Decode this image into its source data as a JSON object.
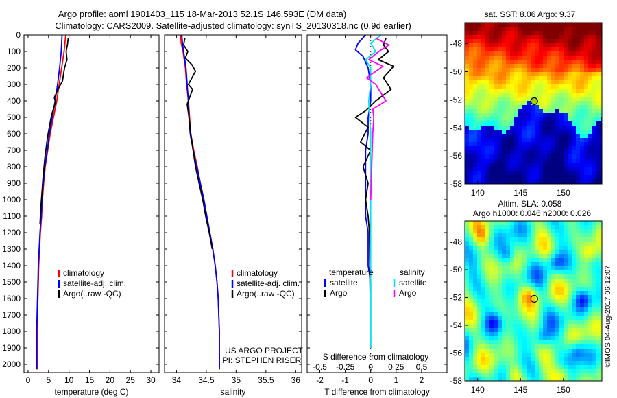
{
  "header": {
    "title_line1": "Argo profile: aoml 1901403_115 18-Mar-2013 52.1S 146.593E (DM data)",
    "title_line2": "Climatology: CARS2009. Satellite-adjusted climatology: synTS_20130318.nc (0.9d earlier)"
  },
  "footer": {
    "project_line1": "US ARGO PROJECT",
    "project_line2": "PI: STEPHEN RISER",
    "copyright": "©IMOS 04-Aug-2017 06:12:07"
  },
  "colors": {
    "climatology": "#ff0000",
    "satellite": "#0000ff",
    "argo": "#000000",
    "salinity_satellite": "#00e5ee",
    "salinity_argo": "#ff00ff"
  },
  "chart_data": [
    {
      "id": "temperature",
      "type": "line",
      "xlabel": "temperature (deg C)",
      "ylabel": "",
      "xlim": [
        -1,
        32
      ],
      "ylim": [
        2050,
        0
      ],
      "xticks": [
        0,
        5,
        10,
        15,
        20,
        25,
        30
      ],
      "xtick_labels": [
        "0",
        "5",
        "10",
        "15",
        "20",
        "25",
        "30"
      ],
      "yticks": [
        0,
        100,
        200,
        300,
        400,
        500,
        600,
        700,
        800,
        900,
        1000,
        1100,
        1200,
        1300,
        1400,
        1500,
        1600,
        1700,
        1800,
        1900,
        2000
      ],
      "ytick_labels": [
        "0",
        "100",
        "200",
        "300",
        "400",
        "500",
        "600",
        "700",
        "800",
        "900",
        "1000",
        "1100",
        "1200",
        "1300",
        "1400",
        "1500",
        "1600",
        "1700",
        "1800",
        "1900",
        "2000"
      ],
      "legend": {
        "placement": "bottom-right",
        "entries": [
          "climatology",
          "satellite-adj. clim.",
          "Argo(..raw -QC)"
        ]
      },
      "series": [
        {
          "name": "climatology",
          "color": "#ff0000",
          "x": [
            9.2,
            9.0,
            8.8,
            8.5,
            8.2,
            7.6,
            7.0,
            6.2,
            5.4,
            4.8,
            4.2,
            3.8,
            3.5,
            3.3,
            3.0,
            2.8,
            2.6,
            2.5,
            2.4,
            2.3,
            2.2,
            2.2
          ],
          "y": [
            0,
            50,
            100,
            150,
            200,
            300,
            400,
            500,
            600,
            700,
            800,
            900,
            1000,
            1100,
            1200,
            1300,
            1400,
            1500,
            1600,
            1700,
            1800,
            2030
          ]
        },
        {
          "name": "satellite-adj. clim.",
          "color": "#0000ff",
          "x": [
            8.3,
            8.2,
            8.1,
            7.9,
            7.7,
            7.2,
            6.6,
            5.9,
            5.2,
            4.7,
            4.1,
            3.7,
            3.4,
            3.2,
            2.9,
            2.7,
            2.5,
            2.4,
            2.3,
            2.2,
            2.1,
            2.1
          ],
          "y": [
            0,
            50,
            100,
            150,
            200,
            300,
            400,
            500,
            600,
            700,
            800,
            900,
            1000,
            1100,
            1200,
            1300,
            1400,
            1500,
            1600,
            1700,
            1800,
            2030
          ]
        },
        {
          "name": "Argo(..raw -QC)",
          "color": "#000000",
          "x": [
            9.8,
            9.6,
            9.3,
            9.5,
            8.9,
            8.4,
            7.3,
            6.4,
            6.7,
            5.8,
            5.4,
            4.9,
            4.6,
            4.1,
            3.7,
            3.4,
            3.1,
            2.9
          ],
          "y": [
            20,
            60,
            100,
            150,
            200,
            280,
            330,
            380,
            410,
            480,
            530,
            600,
            650,
            750,
            850,
            950,
            1050,
            1150
          ]
        }
      ]
    },
    {
      "id": "salinity",
      "type": "line",
      "xlabel": "salinity",
      "ylabel": "",
      "xlim": [
        33.8,
        36.1
      ],
      "ylim": [
        2050,
        0
      ],
      "xticks": [
        34,
        34.5,
        35,
        35.5,
        36
      ],
      "xtick_labels": [
        "34",
        "34.5",
        "35",
        "35.5",
        "36"
      ],
      "legend": {
        "placement": "bottom-right",
        "entries": [
          "climatology",
          "satellite-adj. clim.",
          "Argo(..raw -QC)"
        ]
      },
      "series": [
        {
          "name": "climatology",
          "color": "#ff0000",
          "x": [
            34.07,
            34.08,
            34.11,
            34.13,
            34.15,
            34.17,
            34.2,
            34.22,
            34.24,
            34.29,
            34.35,
            34.4,
            34.46,
            34.51,
            34.56,
            34.61,
            34.65,
            34.68,
            34.7,
            34.71,
            34.72,
            34.72
          ],
          "y": [
            0,
            50,
            100,
            150,
            200,
            300,
            400,
            500,
            600,
            700,
            800,
            900,
            1000,
            1100,
            1200,
            1300,
            1400,
            1500,
            1600,
            1700,
            1800,
            2030
          ]
        },
        {
          "name": "satellite-adj. clim.",
          "color": "#0000ff",
          "x": [
            34.09,
            34.1,
            34.12,
            34.14,
            34.16,
            34.18,
            34.2,
            34.21,
            34.23,
            34.28,
            34.34,
            34.4,
            34.46,
            34.51,
            34.56,
            34.61,
            34.65,
            34.68,
            34.7,
            34.71,
            34.72,
            34.72
          ],
          "y": [
            0,
            50,
            100,
            150,
            200,
            300,
            400,
            500,
            600,
            700,
            800,
            900,
            1000,
            1100,
            1200,
            1300,
            1400,
            1500,
            1600,
            1700,
            1800,
            2030
          ]
        },
        {
          "name": "Argo(..raw -QC)",
          "color": "#000000",
          "x": [
            34.14,
            34.12,
            34.19,
            34.15,
            34.26,
            34.32,
            34.2,
            34.27,
            34.18,
            34.21,
            34.24,
            34.28,
            34.32,
            34.38,
            34.44,
            34.49,
            34.55,
            34.6
          ],
          "y": [
            20,
            60,
            100,
            140,
            180,
            220,
            300,
            330,
            420,
            500,
            600,
            700,
            800,
            900,
            1000,
            1100,
            1200,
            1300
          ]
        }
      ]
    },
    {
      "id": "difference",
      "type": "line",
      "xlabel": "T difference from climatology",
      "xlabel_top": "S difference from climatology",
      "ylabel": "",
      "xlim": [
        -2.5,
        3
      ],
      "ylim": [
        2050,
        0
      ],
      "xticks": [
        -2,
        -1,
        0,
        1,
        2
      ],
      "xtick_labels": [
        "-2",
        "-1",
        "0",
        "1",
        "2"
      ],
      "sticks": [
        -0.5,
        -0.25,
        0,
        0.25,
        0.5
      ],
      "stick_labels": [
        "-0.5",
        "-0.25",
        "0",
        "0.25",
        "0.5"
      ],
      "legend": {
        "placement": "bottom-center",
        "temperature_title": "temperature",
        "salinity_title": "salinity",
        "temperature_entries": [
          "satellite",
          "Argo"
        ],
        "salinity_entries": [
          "satellite",
          "Argo"
        ]
      },
      "series": [
        {
          "name": "T satellite",
          "color": "#0000ff",
          "x": [
            -0.2,
            -0.5,
            -0.6,
            -0.3,
            -0.1,
            0.0,
            0.0,
            -0.1,
            -0.1,
            -0.2,
            -0.2,
            -0.2,
            -0.2,
            -0.2,
            -0.1,
            -0.1,
            -0.1,
            0.0,
            0.0
          ],
          "y": [
            0,
            50,
            90,
            130,
            200,
            300,
            400,
            500,
            600,
            700,
            800,
            900,
            1000,
            1100,
            1200,
            1300,
            1400,
            1500,
            1900
          ]
        },
        {
          "name": "T Argo",
          "color": "#000000",
          "x": [
            0.6,
            0.5,
            0.7,
            0.3,
            0.9,
            0.5,
            0.8,
            0.2,
            -0.2,
            -0.6,
            -0.1,
            -0.4,
            0.0,
            -0.3,
            -0.1,
            -0.2,
            -0.1,
            -0.05,
            0.0
          ],
          "y": [
            20,
            60,
            100,
            150,
            190,
            260,
            330,
            400,
            460,
            500,
            560,
            650,
            700,
            800,
            900,
            1000,
            1100,
            1200,
            1900
          ]
        },
        {
          "name": "S satellite",
          "color": "#00e5ee",
          "x": [
            0.1,
            0.0,
            0.05,
            -0.05,
            0.0,
            0.0,
            -0.02,
            -0.01,
            0.0,
            0.0,
            0.0,
            0.0,
            0.0
          ],
          "y": [
            0,
            50,
            100,
            150,
            200,
            300,
            400,
            500,
            600,
            800,
            1000,
            1200,
            1900
          ]
        },
        {
          "name": "S Argo",
          "color": "#ff00ff",
          "x": [
            0.05,
            0.18,
            0.08,
            -0.02,
            0.12,
            -0.04,
            0.05,
            0.15,
            0.02,
            0.03,
            0.02,
            0.01,
            0.0
          ],
          "y": [
            20,
            60,
            100,
            150,
            190,
            260,
            300,
            400,
            450,
            500,
            600,
            800,
            1000
          ]
        }
      ]
    },
    {
      "id": "sst-map",
      "type": "heatmap",
      "title": "sat. SST: 8.06  Argo: 9.37",
      "xlim": [
        138.5,
        154.5
      ],
      "ylim": [
        -58,
        -46.5
      ],
      "xticks": [
        140,
        145,
        150
      ],
      "xtick_labels": [
        "140",
        "145",
        "150"
      ],
      "yticks": [
        -48,
        -50,
        -52,
        -54,
        -56,
        -58
      ],
      "ytick_labels": [
        "-48",
        "-50",
        "-52",
        "-54",
        "-56",
        "-58"
      ],
      "marker": {
        "x": 146.6,
        "y": -52.1
      }
    },
    {
      "id": "sla-map",
      "type": "heatmap",
      "title_line1": "Altim. SLA: 0.058",
      "title_line2": "Argo h1000: 0.046 h2000: 0.026",
      "xlim": [
        138.5,
        154.5
      ],
      "ylim": [
        -58,
        -46.5
      ],
      "xticks": [
        140,
        145,
        150
      ],
      "xtick_labels": [
        "140",
        "145",
        "150"
      ],
      "yticks": [
        -48,
        -50,
        -52,
        -54,
        -56,
        -58
      ],
      "ytick_labels": [
        "-48",
        "-50",
        "-52",
        "-54",
        "-56",
        "-58"
      ],
      "marker": {
        "x": 146.6,
        "y": -52.1
      }
    }
  ]
}
